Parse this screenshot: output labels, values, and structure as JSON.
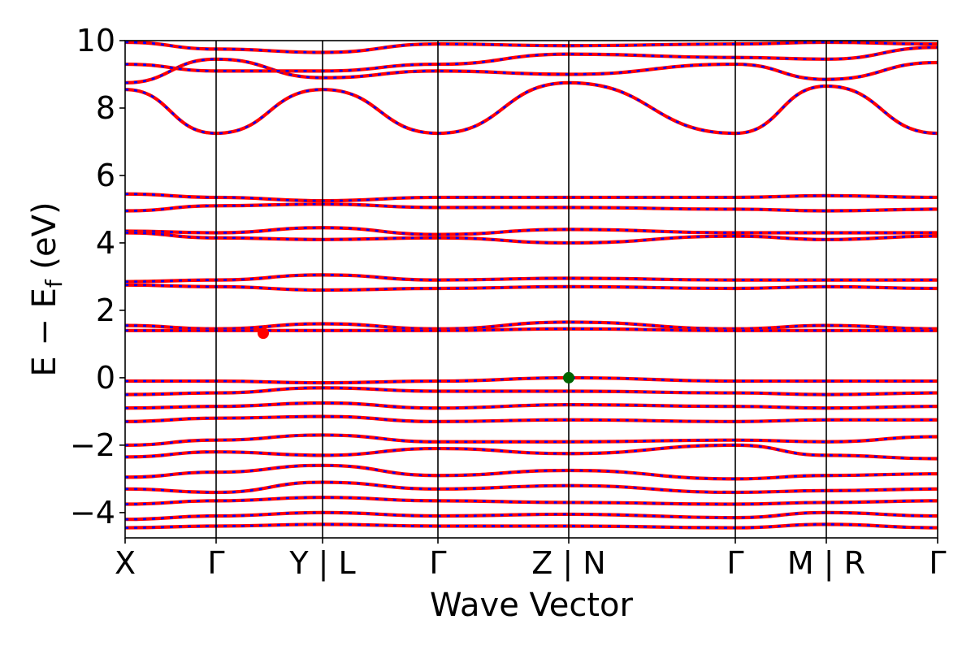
{
  "chart_data": {
    "type": "line",
    "title": "",
    "xlabel": "Wave Vector",
    "ylabel": "E − E",
    "ylabel_subscript": "f",
    "ylabel_unit": " (eV)",
    "ylim": [
      -4.75,
      10
    ],
    "xlim": [
      0,
      1
    ],
    "y_ticks": [
      -4,
      -2,
      0,
      2,
      4,
      6,
      8,
      10
    ],
    "y_tick_labels": [
      "−4",
      "−2",
      "0",
      "2",
      "4",
      "6",
      "8",
      "10"
    ],
    "k_points": [
      {
        "label": "X",
        "x": 0.0
      },
      {
        "label": "Γ",
        "x": 0.112
      },
      {
        "label": "Y | L",
        "x": 0.243
      },
      {
        "label": "Γ",
        "x": 0.385
      },
      {
        "label": "Z | N",
        "x": 0.546
      },
      {
        "label": "Γ",
        "x": 0.751
      },
      {
        "label": "M | R",
        "x": 0.863
      },
      {
        "label": "Γ",
        "x": 1.0
      }
    ],
    "segment_breaks": [
      0.243,
      0.546,
      0.863
    ],
    "series": [
      {
        "color": "#ff0000",
        "style": "solid"
      },
      {
        "color": "#0000ff",
        "style": "dashed"
      }
    ],
    "bands": [
      {
        "x": [
          0,
          0.112,
          0.243,
          0.385,
          0.546,
          0.751,
          0.863,
          1.0
        ],
        "y": [
          8.55,
          7.25,
          8.55,
          7.25,
          8.75,
          7.25,
          8.65,
          7.25
        ]
      },
      {
        "x": [
          0,
          0.112,
          0.243,
          0.385,
          0.546,
          0.751,
          0.863,
          1.0
        ],
        "y": [
          8.75,
          9.45,
          8.9,
          9.1,
          9.0,
          9.3,
          8.85,
          9.35
        ]
      },
      {
        "x": [
          0,
          0.112,
          0.243,
          0.385,
          0.546,
          0.751,
          0.863,
          1.0
        ],
        "y": [
          9.3,
          9.1,
          9.1,
          9.3,
          9.6,
          9.5,
          9.45,
          9.8
        ]
      },
      {
        "x": [
          0,
          0.112,
          0.243,
          0.385,
          0.546,
          0.751,
          0.863,
          1.0
        ],
        "y": [
          9.95,
          9.75,
          9.65,
          9.9,
          9.85,
          9.9,
          9.95,
          9.9
        ]
      },
      {
        "x": [
          0,
          0.112,
          0.243,
          0.385,
          0.546,
          0.751,
          0.863,
          1.0
        ],
        "y": [
          5.45,
          5.35,
          5.25,
          5.35,
          5.35,
          5.35,
          5.4,
          5.35
        ]
      },
      {
        "x": [
          0,
          0.112,
          0.243,
          0.385,
          0.546,
          0.751,
          0.863,
          1.0
        ],
        "y": [
          4.95,
          5.1,
          5.15,
          5.05,
          5.05,
          5.0,
          4.95,
          5.0
        ]
      },
      {
        "x": [
          0,
          0.112,
          0.243,
          0.385,
          0.546,
          0.751,
          0.863,
          1.0
        ],
        "y": [
          4.35,
          4.3,
          4.45,
          4.25,
          4.4,
          4.3,
          4.3,
          4.3
        ]
      },
      {
        "x": [
          0,
          0.112,
          0.243,
          0.385,
          0.546,
          0.751,
          0.863,
          1.0
        ],
        "y": [
          4.3,
          4.15,
          4.1,
          4.15,
          4.0,
          4.2,
          4.1,
          4.2
        ]
      },
      {
        "x": [
          0,
          0.112,
          0.243,
          0.385,
          0.546,
          0.751,
          0.863,
          1.0
        ],
        "y": [
          2.85,
          2.9,
          3.05,
          2.9,
          2.95,
          2.9,
          2.9,
          2.9
        ]
      },
      {
        "x": [
          0,
          0.112,
          0.243,
          0.385,
          0.546,
          0.751,
          0.863,
          1.0
        ],
        "y": [
          2.75,
          2.7,
          2.6,
          2.65,
          2.7,
          2.65,
          2.7,
          2.65
        ]
      },
      {
        "x": [
          0,
          0.112,
          0.243,
          0.385,
          0.546,
          0.751,
          0.863,
          1.0
        ],
        "y": [
          1.55,
          1.45,
          1.6,
          1.45,
          1.65,
          1.45,
          1.55,
          1.45
        ]
      },
      {
        "x": [
          0,
          0.112,
          0.243,
          0.385,
          0.546,
          0.751,
          0.863,
          1.0
        ],
        "y": [
          1.4,
          1.4,
          1.4,
          1.4,
          1.45,
          1.4,
          1.4,
          1.4
        ]
      },
      {
        "x": [
          0,
          0.112,
          0.243,
          0.385,
          0.546,
          0.751,
          0.863,
          1.0
        ],
        "y": [
          -0.1,
          -0.1,
          -0.15,
          -0.1,
          0.0,
          -0.1,
          -0.1,
          -0.1
        ]
      },
      {
        "x": [
          0,
          0.112,
          0.243,
          0.385,
          0.546,
          0.751,
          0.863,
          1.0
        ],
        "y": [
          -0.5,
          -0.45,
          -0.3,
          -0.4,
          -0.4,
          -0.45,
          -0.5,
          -0.45
        ]
      },
      {
        "x": [
          0,
          0.112,
          0.243,
          0.385,
          0.546,
          0.751,
          0.863,
          1.0
        ],
        "y": [
          -0.9,
          -0.85,
          -0.75,
          -0.9,
          -0.8,
          -0.85,
          -0.9,
          -0.85
        ]
      },
      {
        "x": [
          0,
          0.112,
          0.243,
          0.385,
          0.546,
          0.751,
          0.863,
          1.0
        ],
        "y": [
          -1.3,
          -1.2,
          -1.15,
          -1.3,
          -1.25,
          -1.3,
          -1.25,
          -1.25
        ]
      },
      {
        "x": [
          0,
          0.112,
          0.243,
          0.385,
          0.546,
          0.751,
          0.863,
          1.0
        ],
        "y": [
          -2.0,
          -1.85,
          -1.7,
          -1.9,
          -1.9,
          -1.85,
          -1.9,
          -1.75
        ]
      },
      {
        "x": [
          0,
          0.112,
          0.243,
          0.385,
          0.546,
          0.751,
          0.863,
          1.0
        ],
        "y": [
          -2.35,
          -2.2,
          -2.3,
          -2.1,
          -2.25,
          -2.0,
          -2.3,
          -2.4
        ]
      },
      {
        "x": [
          0,
          0.112,
          0.243,
          0.385,
          0.546,
          0.751,
          0.863,
          1.0
        ],
        "y": [
          -2.95,
          -2.8,
          -2.6,
          -2.9,
          -2.75,
          -3.0,
          -2.9,
          -2.85
        ]
      },
      {
        "x": [
          0,
          0.112,
          0.243,
          0.385,
          0.546,
          0.751,
          0.863,
          1.0
        ],
        "y": [
          -3.3,
          -3.4,
          -3.1,
          -3.3,
          -3.2,
          -3.4,
          -3.35,
          -3.3
        ]
      },
      {
        "x": [
          0,
          0.112,
          0.243,
          0.385,
          0.546,
          0.751,
          0.863,
          1.0
        ],
        "y": [
          -3.75,
          -3.65,
          -3.55,
          -3.65,
          -3.7,
          -3.75,
          -3.7,
          -3.65
        ]
      },
      {
        "x": [
          0,
          0.112,
          0.243,
          0.385,
          0.546,
          0.751,
          0.863,
          1.0
        ],
        "y": [
          -4.2,
          -4.1,
          -4.0,
          -4.1,
          -4.05,
          -4.15,
          -4.0,
          -4.1
        ]
      },
      {
        "x": [
          0,
          0.112,
          0.243,
          0.385,
          0.546,
          0.751,
          0.863,
          1.0
        ],
        "y": [
          -4.45,
          -4.4,
          -4.35,
          -4.4,
          -4.4,
          -4.45,
          -4.35,
          -4.45
        ]
      }
    ],
    "markers": [
      {
        "x": 0.17,
        "y": 1.32,
        "color": "#ff0000"
      },
      {
        "x": 0.546,
        "y": 0.0,
        "color": "#006400"
      }
    ]
  }
}
